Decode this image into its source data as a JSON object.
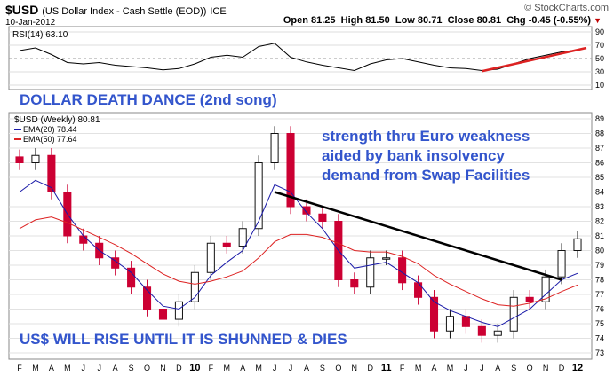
{
  "header": {
    "symbol": "$USD",
    "description": "(US Dollar Index - Cash Settle (EOD))",
    "exchange": "ICE",
    "date": "10-Jan-2012",
    "brand": "© StockCharts.com",
    "open_label": "Open",
    "open": "81.25",
    "high_label": "High",
    "high": "81.50",
    "low_label": "Low",
    "low": "80.71",
    "close_label": "Close",
    "close": "80.81",
    "chg_label": "Chg",
    "chg": "-0.45 (-0.55%)",
    "down_icon": "down-triangle-icon"
  },
  "rsi_panel": {
    "legend": "RSI(14) 63.10",
    "ticks": [
      "90",
      "70",
      "50",
      "30",
      "10"
    ],
    "annotation": "DOLLAR DEATH DANCE (2nd song)"
  },
  "price_panel": {
    "legend_main": "$USD (Weekly) 80.81",
    "legend_ema20": "EMA(20) 78.44",
    "legend_ema50": "EMA(50) 77.64",
    "annotation_1": "strength thru Euro weakness",
    "annotation_2": "aided by bank insolvency",
    "annotation_3": "demand from Swap Facilities",
    "annotation_bottom": "US$ WILL RISE UNTIL IT IS SHUNNED & DIES",
    "y_ticks": [
      "89",
      "88",
      "87",
      "86",
      "85",
      "84",
      "83",
      "82",
      "81",
      "80",
      "79",
      "78",
      "77",
      "76",
      "75",
      "74",
      "73"
    ]
  },
  "x_ticks": [
    "F",
    "M",
    "A",
    "M",
    "J",
    "J",
    "A",
    "S",
    "O",
    "N",
    "D",
    "10",
    "F",
    "M",
    "A",
    "M",
    "J",
    "J",
    "A",
    "S",
    "O",
    "N",
    "D",
    "11",
    "F",
    "M",
    "A",
    "M",
    "J",
    "J",
    "A",
    "S",
    "O",
    "N",
    "D",
    "12"
  ],
  "colors": {
    "up": "#111111",
    "down": "#cc0033",
    "ema20": "#1a1aa8",
    "ema50": "#dd2222",
    "trend": "#000000",
    "rsi_trend": "#dd2222",
    "annotation": "#3355cc"
  },
  "chart_data": [
    {
      "type": "line",
      "title": "RSI(14) 63.10",
      "x": [
        "Feb-09",
        "Mar-09",
        "Apr-09",
        "May-09",
        "Jun-09",
        "Jul-09",
        "Aug-09",
        "Sep-09",
        "Oct-09",
        "Nov-09",
        "Dec-09",
        "Jan-10",
        "Feb-10",
        "Mar-10",
        "Apr-10",
        "May-10",
        "Jun-10",
        "Jul-10",
        "Aug-10",
        "Sep-10",
        "Oct-10",
        "Nov-10",
        "Dec-10",
        "Jan-11",
        "Feb-11",
        "Mar-11",
        "Apr-11",
        "May-11",
        "Jun-11",
        "Jul-11",
        "Aug-11",
        "Sep-11",
        "Oct-11",
        "Nov-11",
        "Dec-11",
        "Jan-12"
      ],
      "series": [
        {
          "name": "RSI(14)",
          "values": [
            62,
            66,
            56,
            44,
            42,
            44,
            40,
            38,
            36,
            33,
            35,
            42,
            52,
            55,
            52,
            68,
            73,
            52,
            45,
            40,
            36,
            32,
            42,
            48,
            50,
            45,
            40,
            36,
            35,
            32,
            34,
            42,
            50,
            55,
            60,
            63
          ]
        }
      ],
      "ylim": [
        10,
        90
      ],
      "yticks": [
        10,
        30,
        50,
        70,
        90
      ],
      "trendline": {
        "from": [
          "Jul-11",
          31
        ],
        "to": [
          "Jan-12",
          66
        ]
      }
    },
    {
      "type": "candlestick",
      "title": "$USD (Weekly) 80.81",
      "x": [
        "Feb-09",
        "Mar-09",
        "Apr-09",
        "May-09",
        "Jun-09",
        "Jul-09",
        "Aug-09",
        "Sep-09",
        "Oct-09",
        "Nov-09",
        "Dec-09",
        "Jan-10",
        "Feb-10",
        "Mar-10",
        "Apr-10",
        "May-10",
        "Jun-10",
        "Jul-10",
        "Aug-10",
        "Sep-10",
        "Oct-10",
        "Nov-10",
        "Dec-10",
        "Jan-11",
        "Feb-11",
        "Mar-11",
        "Apr-11",
        "May-11",
        "Jun-11",
        "Jul-11",
        "Aug-11",
        "Sep-11",
        "Oct-11",
        "Nov-11",
        "Dec-11",
        "Jan-12"
      ],
      "series": [
        {
          "name": "$USD (Weekly) 80.81",
          "values": [
            86,
            86.5,
            84,
            81,
            80.5,
            79.5,
            78.8,
            77.5,
            76,
            75.3,
            76.5,
            78.5,
            80.5,
            80.3,
            81.5,
            86,
            88,
            83,
            82.5,
            82,
            78,
            77.5,
            79.5,
            79.5,
            77.8,
            76.8,
            74.5,
            75.5,
            74.8,
            74.2,
            74.5,
            76.8,
            76.5,
            78.2,
            80,
            80.8
          ]
        },
        {
          "name": "EMA(20) 78.44",
          "values": [
            84,
            84.8,
            84.3,
            82.5,
            81,
            80,
            79.3,
            78.5,
            77.3,
            76.2,
            76,
            76.8,
            78.3,
            79.2,
            80,
            82,
            84.5,
            84,
            82.6,
            81.5,
            80,
            78.8,
            79,
            79.2,
            78.5,
            77.8,
            76.5,
            75.9,
            75.5,
            75.1,
            74.8,
            75.4,
            76,
            77,
            78,
            78.44
          ]
        },
        {
          "name": "EMA(50) 77.64",
          "values": [
            81.5,
            82.1,
            82.3,
            81.9,
            81.4,
            80.9,
            80.4,
            79.8,
            79.1,
            78.4,
            77.9,
            77.7,
            77.9,
            78.2,
            78.6,
            79.5,
            80.6,
            81.1,
            81.1,
            80.9,
            80.5,
            80,
            79.9,
            79.9,
            79.6,
            79.1,
            78.3,
            77.7,
            77.2,
            76.7,
            76.3,
            76.2,
            76.4,
            76.7,
            77.2,
            77.64
          ]
        }
      ],
      "ylim": [
        73,
        89
      ],
      "yticks": [
        73,
        74,
        75,
        76,
        77,
        78,
        79,
        80,
        81,
        82,
        83,
        84,
        85,
        86,
        87,
        88,
        89
      ],
      "trendline": {
        "from": [
          "Jun-10",
          84
        ],
        "to": [
          "Dec-11",
          78
        ]
      }
    }
  ]
}
